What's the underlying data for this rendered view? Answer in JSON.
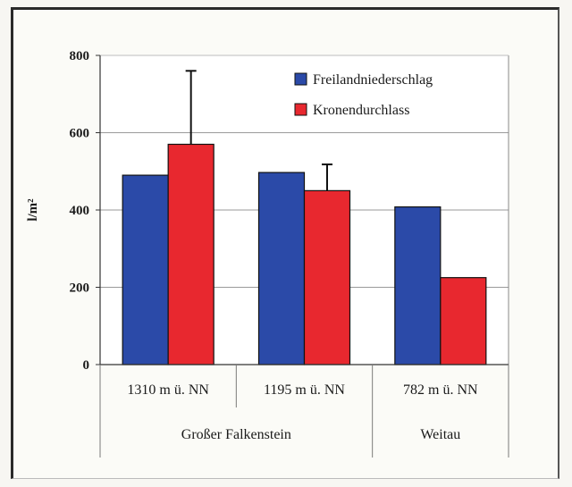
{
  "chart_data": {
    "type": "bar",
    "ylabel": "l/m²",
    "ylim": [
      0,
      800
    ],
    "yticks": [
      0,
      200,
      400,
      600,
      800
    ],
    "categories": [
      "1310 m ü. NN",
      "1195 m ü. NN",
      "782 m ü. NN"
    ],
    "groups": [
      {
        "label": "Großer Falkenstein",
        "span": [
          0,
          1
        ]
      },
      {
        "label": "Weitau",
        "span": [
          2,
          2
        ]
      }
    ],
    "series": [
      {
        "name": "Freilandniederschlag",
        "color": "#2b4aa8",
        "values": [
          490,
          497,
          408
        ],
        "error": [
          null,
          null,
          null
        ]
      },
      {
        "name": "Kronendurchlass",
        "color": "#e8282f",
        "values": [
          570,
          450,
          225
        ],
        "error": [
          190,
          68,
          null
        ]
      }
    ],
    "grid": true,
    "legend": "top-right"
  }
}
